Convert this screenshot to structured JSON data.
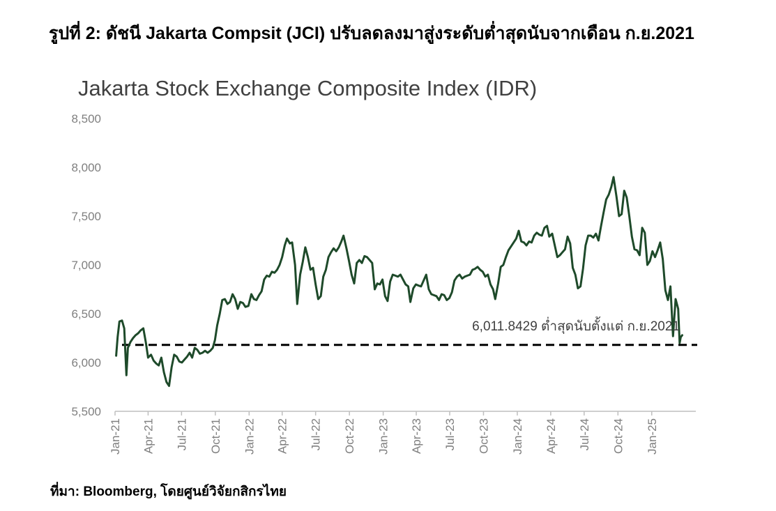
{
  "caption": "รูปที่ 2: ดัชนี Jakarta Compsit (JCI) ปรับลดลงมาสู่งระดับต่ำสุดนับจากเดือน ก.ย.2021",
  "source": "ที่มา: Bloomberg, โดยศูนย์วิจัยกสิกรไทย",
  "colors": {
    "line": "#1e4a2a",
    "axis": "#bfbfbf",
    "text": "#7f7f7f"
  },
  "chart_data": {
    "type": "line",
    "title": "Jakarta Stock Exchange Composite Index (IDR)",
    "xlabel": "",
    "ylabel": "",
    "ylim": [
      5500,
      8500
    ],
    "yticks": [
      "5,500",
      "6,000",
      "6,500",
      "7,000",
      "7,500",
      "8,000",
      "8,500"
    ],
    "xticks": [
      "Jan-21",
      "Apr-21",
      "Jul-21",
      "Oct-21",
      "Jan-22",
      "Apr-22",
      "Jul-22",
      "Oct-22",
      "Jan-23",
      "Apr-23",
      "Jul-23",
      "Oct-23",
      "Jan-24",
      "Apr-24",
      "Jul-24",
      "Oct-24",
      "Jan-25"
    ],
    "xlim": [
      "2021-01-01",
      "2025-05-01"
    ],
    "grid": false,
    "series": [
      {
        "values": [
          [
            "2021-01-04",
            6070
          ],
          [
            "2021-01-08",
            6260
          ],
          [
            "2021-01-13",
            6420
          ],
          [
            "2021-01-20",
            6430
          ],
          [
            "2021-01-26",
            6350
          ],
          [
            "2021-02-01",
            5870
          ],
          [
            "2021-02-05",
            6150
          ],
          [
            "2021-02-12",
            6210
          ],
          [
            "2021-02-19",
            6250
          ],
          [
            "2021-02-26",
            6280
          ],
          [
            "2021-03-05",
            6300
          ],
          [
            "2021-03-12",
            6330
          ],
          [
            "2021-03-19",
            6350
          ],
          [
            "2021-03-26",
            6200
          ],
          [
            "2021-04-01",
            6050
          ],
          [
            "2021-04-09",
            6080
          ],
          [
            "2021-04-16",
            6020
          ],
          [
            "2021-04-23",
            5990
          ],
          [
            "2021-04-30",
            5970
          ],
          [
            "2021-05-07",
            6050
          ],
          [
            "2021-05-14",
            5900
          ],
          [
            "2021-05-21",
            5800
          ],
          [
            "2021-05-28",
            5760
          ],
          [
            "2021-06-04",
            5950
          ],
          [
            "2021-06-11",
            6080
          ],
          [
            "2021-06-18",
            6060
          ],
          [
            "2021-06-25",
            6010
          ],
          [
            "2021-07-02",
            6000
          ],
          [
            "2021-07-09",
            6030
          ],
          [
            "2021-07-16",
            6060
          ],
          [
            "2021-07-23",
            6100
          ],
          [
            "2021-07-30",
            6050
          ],
          [
            "2021-08-06",
            6150
          ],
          [
            "2021-08-13",
            6130
          ],
          [
            "2021-08-20",
            6090
          ],
          [
            "2021-08-27",
            6100
          ],
          [
            "2021-09-03",
            6120
          ],
          [
            "2021-09-10",
            6100
          ],
          [
            "2021-09-17",
            6120
          ],
          [
            "2021-09-24",
            6150
          ],
          [
            "2021-09-30",
            6230
          ],
          [
            "2021-10-06",
            6380
          ],
          [
            "2021-10-13",
            6500
          ],
          [
            "2021-10-20",
            6640
          ],
          [
            "2021-10-27",
            6650
          ],
          [
            "2021-11-03",
            6600
          ],
          [
            "2021-11-10",
            6620
          ],
          [
            "2021-11-17",
            6700
          ],
          [
            "2021-11-24",
            6650
          ],
          [
            "2021-12-01",
            6550
          ],
          [
            "2021-12-08",
            6620
          ],
          [
            "2021-12-15",
            6610
          ],
          [
            "2021-12-22",
            6570
          ],
          [
            "2021-12-30",
            6580
          ],
          [
            "2022-01-07",
            6700
          ],
          [
            "2022-01-14",
            6650
          ],
          [
            "2022-01-21",
            6640
          ],
          [
            "2022-01-28",
            6690
          ],
          [
            "2022-02-04",
            6730
          ],
          [
            "2022-02-11",
            6850
          ],
          [
            "2022-02-18",
            6890
          ],
          [
            "2022-02-25",
            6880
          ],
          [
            "2022-03-04",
            6930
          ],
          [
            "2022-03-11",
            6920
          ],
          [
            "2022-03-18",
            6950
          ],
          [
            "2022-03-25",
            7000
          ],
          [
            "2022-04-01",
            7080
          ],
          [
            "2022-04-08",
            7200
          ],
          [
            "2022-04-14",
            7270
          ],
          [
            "2022-04-22",
            7220
          ],
          [
            "2022-04-28",
            7230
          ],
          [
            "2022-05-06",
            7000
          ],
          [
            "2022-05-12",
            6600
          ],
          [
            "2022-05-20",
            6900
          ],
          [
            "2022-05-27",
            7030
          ],
          [
            "2022-06-03",
            7180
          ],
          [
            "2022-06-10",
            7080
          ],
          [
            "2022-06-17",
            6950
          ],
          [
            "2022-06-24",
            6970
          ],
          [
            "2022-07-01",
            6800
          ],
          [
            "2022-07-08",
            6650
          ],
          [
            "2022-07-15",
            6680
          ],
          [
            "2022-07-22",
            6880
          ],
          [
            "2022-07-29",
            6950
          ],
          [
            "2022-08-05",
            7080
          ],
          [
            "2022-08-12",
            7130
          ],
          [
            "2022-08-19",
            7170
          ],
          [
            "2022-08-26",
            7140
          ],
          [
            "2022-09-02",
            7180
          ],
          [
            "2022-09-09",
            7240
          ],
          [
            "2022-09-15",
            7300
          ],
          [
            "2022-09-23",
            7170
          ],
          [
            "2022-09-30",
            7040
          ],
          [
            "2022-10-07",
            6900
          ],
          [
            "2022-10-14",
            6810
          ],
          [
            "2022-10-21",
            7020
          ],
          [
            "2022-10-28",
            7050
          ],
          [
            "2022-11-04",
            7020
          ],
          [
            "2022-11-11",
            7090
          ],
          [
            "2022-11-18",
            7080
          ],
          [
            "2022-11-25",
            7050
          ],
          [
            "2022-12-02",
            7020
          ],
          [
            "2022-12-09",
            6750
          ],
          [
            "2022-12-16",
            6810
          ],
          [
            "2022-12-23",
            6800
          ],
          [
            "2022-12-30",
            6850
          ],
          [
            "2023-01-06",
            6680
          ],
          [
            "2023-01-13",
            6630
          ],
          [
            "2023-01-20",
            6830
          ],
          [
            "2023-01-27",
            6900
          ],
          [
            "2023-02-03",
            6890
          ],
          [
            "2023-02-10",
            6880
          ],
          [
            "2023-02-17",
            6900
          ],
          [
            "2023-02-24",
            6850
          ],
          [
            "2023-03-03",
            6800
          ],
          [
            "2023-03-10",
            6780
          ],
          [
            "2023-03-16",
            6620
          ],
          [
            "2023-03-24",
            6760
          ],
          [
            "2023-03-31",
            6800
          ],
          [
            "2023-04-06",
            6790
          ],
          [
            "2023-04-14",
            6780
          ],
          [
            "2023-04-28",
            6900
          ],
          [
            "2023-05-05",
            6750
          ],
          [
            "2023-05-12",
            6700
          ],
          [
            "2023-05-19",
            6690
          ],
          [
            "2023-05-26",
            6680
          ],
          [
            "2023-06-02",
            6640
          ],
          [
            "2023-06-09",
            6700
          ],
          [
            "2023-06-16",
            6690
          ],
          [
            "2023-06-23",
            6640
          ],
          [
            "2023-06-30",
            6660
          ],
          [
            "2023-07-07",
            6720
          ],
          [
            "2023-07-14",
            6840
          ],
          [
            "2023-07-21",
            6880
          ],
          [
            "2023-07-28",
            6900
          ],
          [
            "2023-08-04",
            6860
          ],
          [
            "2023-08-11",
            6880
          ],
          [
            "2023-08-18",
            6890
          ],
          [
            "2023-08-25",
            6900
          ],
          [
            "2023-09-01",
            6950
          ],
          [
            "2023-09-08",
            6960
          ],
          [
            "2023-09-15",
            6980
          ],
          [
            "2023-09-22",
            6950
          ],
          [
            "2023-09-29",
            6930
          ],
          [
            "2023-10-06",
            6880
          ],
          [
            "2023-10-13",
            6900
          ],
          [
            "2023-10-20",
            6800
          ],
          [
            "2023-10-27",
            6750
          ],
          [
            "2023-11-02",
            6650
          ],
          [
            "2023-11-10",
            6810
          ],
          [
            "2023-11-17",
            6980
          ],
          [
            "2023-11-24",
            7000
          ],
          [
            "2023-12-01",
            7080
          ],
          [
            "2023-12-08",
            7150
          ],
          [
            "2023-12-15",
            7190
          ],
          [
            "2023-12-22",
            7230
          ],
          [
            "2023-12-29",
            7270
          ],
          [
            "2024-01-05",
            7350
          ],
          [
            "2024-01-12",
            7240
          ],
          [
            "2024-01-19",
            7230
          ],
          [
            "2024-01-26",
            7200
          ],
          [
            "2024-02-02",
            7240
          ],
          [
            "2024-02-09",
            7230
          ],
          [
            "2024-02-16",
            7300
          ],
          [
            "2024-02-23",
            7330
          ],
          [
            "2024-03-01",
            7310
          ],
          [
            "2024-03-08",
            7300
          ],
          [
            "2024-03-15",
            7380
          ],
          [
            "2024-03-22",
            7400
          ],
          [
            "2024-03-28",
            7290
          ],
          [
            "2024-04-05",
            7320
          ],
          [
            "2024-04-19",
            7080
          ],
          [
            "2024-04-26",
            7100
          ],
          [
            "2024-05-03",
            7130
          ],
          [
            "2024-05-10",
            7160
          ],
          [
            "2024-05-17",
            7290
          ],
          [
            "2024-05-24",
            7220
          ],
          [
            "2024-05-31",
            6970
          ],
          [
            "2024-06-07",
            6900
          ],
          [
            "2024-06-14",
            6760
          ],
          [
            "2024-06-21",
            6780
          ],
          [
            "2024-06-28",
            6960
          ],
          [
            "2024-07-05",
            7200
          ],
          [
            "2024-07-12",
            7300
          ],
          [
            "2024-07-19",
            7300
          ],
          [
            "2024-07-26",
            7280
          ],
          [
            "2024-08-02",
            7320
          ],
          [
            "2024-08-09",
            7250
          ],
          [
            "2024-08-16",
            7400
          ],
          [
            "2024-08-23",
            7540
          ],
          [
            "2024-08-30",
            7670
          ],
          [
            "2024-09-06",
            7720
          ],
          [
            "2024-09-13",
            7800
          ],
          [
            "2024-09-19",
            7900
          ],
          [
            "2024-09-27",
            7700
          ],
          [
            "2024-10-04",
            7500
          ],
          [
            "2024-10-11",
            7520
          ],
          [
            "2024-10-18",
            7760
          ],
          [
            "2024-10-25",
            7690
          ],
          [
            "2024-11-01",
            7500
          ],
          [
            "2024-11-08",
            7290
          ],
          [
            "2024-11-15",
            7160
          ],
          [
            "2024-11-22",
            7150
          ],
          [
            "2024-11-29",
            7100
          ],
          [
            "2024-12-06",
            7380
          ],
          [
            "2024-12-13",
            7330
          ],
          [
            "2024-12-20",
            7000
          ],
          [
            "2024-12-27",
            7040
          ],
          [
            "2025-01-03",
            7140
          ],
          [
            "2025-01-10",
            7080
          ],
          [
            "2025-01-17",
            7150
          ],
          [
            "2025-01-24",
            7230
          ],
          [
            "2025-01-31",
            7060
          ],
          [
            "2025-02-07",
            6740
          ],
          [
            "2025-02-14",
            6640
          ],
          [
            "2025-02-21",
            6780
          ],
          [
            "2025-02-28",
            6270
          ],
          [
            "2025-03-07",
            6650
          ],
          [
            "2025-03-14",
            6550
          ],
          [
            "2025-03-18",
            6200
          ],
          [
            "2025-03-21",
            6260
          ],
          [
            "2025-03-25",
            6280
          ]
        ]
      }
    ],
    "reference_line": {
      "value": 6180
    },
    "annotation": "6,011.8429 ต่ำสุดนับตั้งแต่ ก.ย.2021"
  }
}
